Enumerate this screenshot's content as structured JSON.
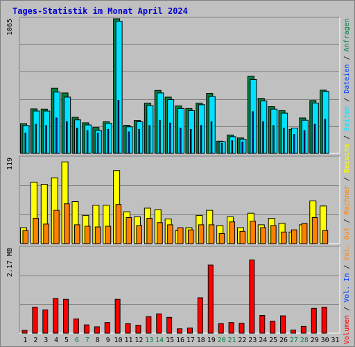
{
  "title": "Tages-Statistik im Monat April 2024",
  "colors": {
    "anfragen": "#008040",
    "dateien": "#0040ff",
    "seiten": "#00e0ff",
    "besuche": "#ffff00",
    "rechner": "#ff8000",
    "vol_out": "#ff8000",
    "vol_in": "#0040ff",
    "volumen": "#ff0000",
    "weekend": "#008040",
    "weekday": "#000000",
    "bg": "#c0c0c0"
  },
  "chart_data": [
    {
      "type": "bar",
      "ylabel_max": "1065",
      "ymax": 1065,
      "x": [
        1,
        2,
        3,
        4,
        5,
        6,
        7,
        8,
        9,
        10,
        11,
        12,
        13,
        14,
        15,
        16,
        17,
        18,
        19,
        20,
        21,
        22,
        23,
        24,
        25,
        26,
        27,
        28,
        29,
        30,
        31
      ],
      "x_labels": [
        "1",
        "2",
        "3",
        "4",
        "5",
        "6",
        "7",
        "8",
        "9",
        "10",
        "11",
        "12",
        "13",
        "14",
        "15",
        "16",
        "17",
        "18",
        "19",
        "20",
        "21",
        "22",
        "23",
        "24",
        "25",
        "26",
        "27",
        "28",
        "29",
        "30",
        "31"
      ],
      "weekend": [
        6,
        7,
        13,
        14,
        20,
        21,
        27,
        28
      ],
      "series": [
        {
          "name": "Anfragen",
          "color": "#008040",
          "values": [
            235,
            352,
            350,
            515,
            478,
            285,
            242,
            205,
            250,
            1065,
            222,
            260,
            398,
            498,
            445,
            375,
            355,
            398,
            475,
            97,
            145,
            122,
            610,
            435,
            370,
            338,
            190,
            280,
            418,
            500,
            0
          ]
        },
        {
          "name": "Dateien",
          "color": "#0040ff",
          "values": [
            160,
            230,
            220,
            280,
            250,
            200,
            180,
            160,
            190,
            420,
            170,
            190,
            220,
            260,
            240,
            200,
            190,
            220,
            250,
            80,
            100,
            90,
            330,
            250,
            220,
            200,
            150,
            180,
            230,
            270,
            0
          ]
        },
        {
          "name": "Seiten",
          "color": "#00e0ff",
          "values": [
            220,
            335,
            335,
            485,
            445,
            265,
            225,
            182,
            238,
            1045,
            210,
            250,
            378,
            478,
            425,
            355,
            338,
            385,
            450,
            92,
            132,
            112,
            585,
            415,
            350,
            318,
            200,
            262,
            398,
            490,
            0
          ]
        }
      ],
      "legend": [
        "Anfragen",
        "Dateien",
        "Seiten"
      ]
    },
    {
      "type": "bar",
      "ylabel_max": "119",
      "ymax": 119,
      "x": [
        1,
        2,
        3,
        4,
        5,
        6,
        7,
        8,
        9,
        10,
        11,
        12,
        13,
        14,
        15,
        16,
        17,
        18,
        19,
        20,
        21,
        22,
        23,
        24,
        25,
        26,
        27,
        28,
        29,
        30,
        31
      ],
      "series": [
        {
          "name": "Besuche",
          "color": "#ffff00",
          "values": [
            22,
            85,
            82,
            91,
            113,
            58,
            39,
            53,
            53,
            101,
            44,
            37,
            49,
            47,
            34,
            18,
            22,
            39,
            46,
            25,
            37,
            22,
            42,
            26,
            35,
            28,
            16,
            26,
            59,
            52,
            0
          ]
        },
        {
          "name": "Rechner",
          "color": "#ff8000",
          "values": [
            18,
            35,
            27,
            46,
            55,
            26,
            24,
            23,
            24,
            54,
            36,
            25,
            35,
            29,
            26,
            22,
            19,
            26,
            26,
            14,
            30,
            17,
            31,
            22,
            25,
            16,
            19,
            28,
            36,
            18,
            0
          ]
        }
      ],
      "legend": [
        "Besuche",
        "Rechner"
      ]
    },
    {
      "type": "bar",
      "ylabel_max": "2.17 MB",
      "ymax": 2.17,
      "x": [
        1,
        2,
        3,
        4,
        5,
        6,
        7,
        8,
        9,
        10,
        11,
        12,
        13,
        14,
        15,
        16,
        17,
        18,
        19,
        20,
        21,
        22,
        23,
        24,
        25,
        26,
        27,
        28,
        29,
        30,
        31
      ],
      "series": [
        {
          "name": "Volumen",
          "color": "#ff0000",
          "values": [
            0.07,
            0.66,
            0.59,
            0.88,
            0.86,
            0.36,
            0.21,
            0.16,
            0.27,
            0.86,
            0.24,
            0.2,
            0.42,
            0.49,
            0.4,
            0.11,
            0.13,
            0.9,
            1.73,
            0.24,
            0.27,
            0.25,
            1.86,
            0.45,
            0.3,
            0.44,
            0.08,
            0.17,
            0.63,
            0.66,
            0
          ]
        }
      ],
      "legend": [
        "Volumen",
        "Vol. In",
        "Vol. Out"
      ]
    }
  ],
  "right_legend": [
    {
      "text": "Volumen",
      "color": "#ff0000"
    },
    {
      "text": " / ",
      "color": "#000000"
    },
    {
      "text": "Vol. In",
      "color": "#0040ff"
    },
    {
      "text": " / ",
      "color": "#000000"
    },
    {
      "text": "Vol. Out",
      "color": "#ff8000"
    },
    {
      "text": " / ",
      "color": "#000000"
    },
    {
      "text": "Rechner",
      "color": "#ff8000"
    },
    {
      "text": " / ",
      "color": "#000000"
    },
    {
      "text": "Besuche",
      "color": "#ffff00"
    },
    {
      "text": " / ",
      "color": "#000000"
    },
    {
      "text": "Seiten",
      "color": "#00e0ff"
    },
    {
      "text": " / ",
      "color": "#000000"
    },
    {
      "text": "Dateien",
      "color": "#0040ff"
    },
    {
      "text": " / ",
      "color": "#000000"
    },
    {
      "text": "Anfragen",
      "color": "#008040"
    }
  ]
}
